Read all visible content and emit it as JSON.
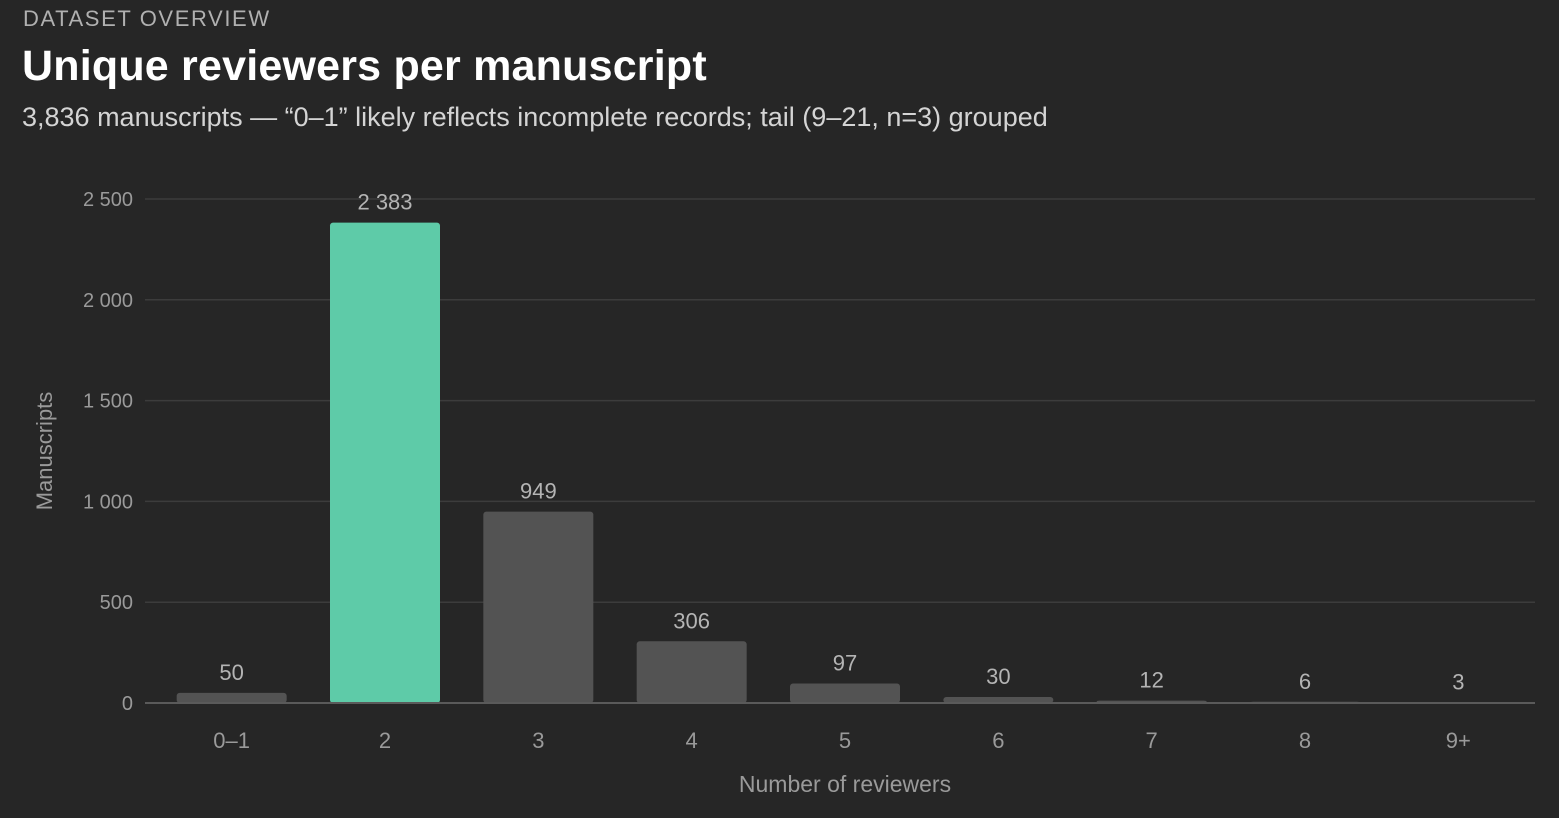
{
  "header": {
    "eyebrow": "DATASET OVERVIEW",
    "title": "Unique reviewers per manuscript",
    "subtitle": "3,836 manuscripts — “0–1” likely reflects incomplete records; tail (9–21, n=3) grouped"
  },
  "colors": {
    "highlight": "#5ecba8",
    "bar": "#535353",
    "grid": "#3c3c3c",
    "axis_text": "#9a9a9a",
    "value_label": "#b4b4b4"
  },
  "chart_data": {
    "type": "bar",
    "categories": [
      "0–1",
      "2",
      "3",
      "4",
      "5",
      "6",
      "7",
      "8",
      "9+"
    ],
    "values": [
      50,
      2383,
      949,
      306,
      97,
      30,
      12,
      6,
      3
    ],
    "value_labels": [
      "50",
      "2 383",
      "949",
      "306",
      "97",
      "30",
      "12",
      "6",
      "3"
    ],
    "highlight_category": "2",
    "xlabel": "Number of reviewers",
    "ylabel": "Manuscripts",
    "ylim": [
      0,
      2500
    ],
    "yticks": [
      0,
      500,
      1000,
      1500,
      2000,
      2500
    ],
    "ytick_labels": [
      "0",
      "500",
      "1 000",
      "1 500",
      "2 000",
      "2 500"
    ],
    "grid": true,
    "legend": "none"
  }
}
